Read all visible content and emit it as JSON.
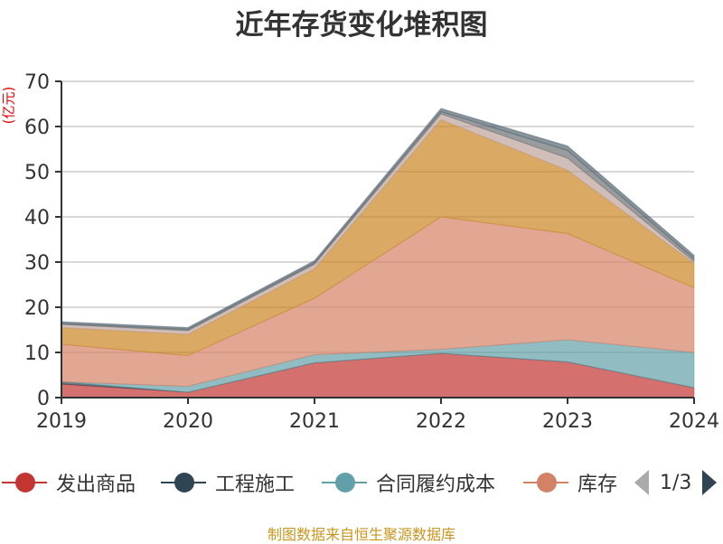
{
  "chart_data": {
    "type": "area",
    "stacked": true,
    "title": "近年存货变化堆积图",
    "ylabel": "(亿元)",
    "xlabel": "",
    "categories": [
      "2019",
      "2020",
      "2021",
      "2022",
      "2023",
      "2024"
    ],
    "ylim": [
      0,
      70
    ],
    "yticks": [
      "0",
      "10",
      "20",
      "30",
      "40",
      "50",
      "60",
      "70"
    ],
    "grid": true,
    "legend_position": "bottom",
    "legend_page": "1/3",
    "series": [
      {
        "name": "发出商品",
        "color": "#c23531",
        "values": [
          3.0,
          1.2,
          7.7,
          9.8,
          7.9,
          2.2
        ]
      },
      {
        "name": "工程施工",
        "color": "#2f4554",
        "values": [
          0.5,
          0,
          0,
          0,
          0,
          0
        ]
      },
      {
        "name": "合同履约成本",
        "color": "#61a0a8",
        "values": [
          0,
          1.3,
          1.8,
          0.9,
          4.9,
          7.8
        ]
      },
      {
        "name": "库存",
        "color": "#d48265",
        "values": [
          8.3,
          6.8,
          12.5,
          29.3,
          23.5,
          14.3
        ]
      },
      {
        "color": "#ca8622",
        "values": [
          3.7,
          4.7,
          6.5,
          21.5,
          14.0,
          5.4
        ]
      },
      {
        "color": "#bda29a",
        "values": [
          0.7,
          0.8,
          1.0,
          1.3,
          2.7,
          0.4
        ]
      },
      {
        "color": "#6e7074",
        "values": [
          0.2,
          0.3,
          0.3,
          0.5,
          1.7,
          0.6
        ]
      },
      {
        "color": "#546570",
        "values": [
          0.4,
          0.4,
          0.5,
          0.7,
          1.0,
          0.8
        ]
      }
    ]
  },
  "legend": {
    "items": [
      "发出商品",
      "工程施工",
      "合同履约成本",
      "库存"
    ],
    "page": "1/3"
  },
  "footer": "制图数据来自恒生聚源数据库"
}
